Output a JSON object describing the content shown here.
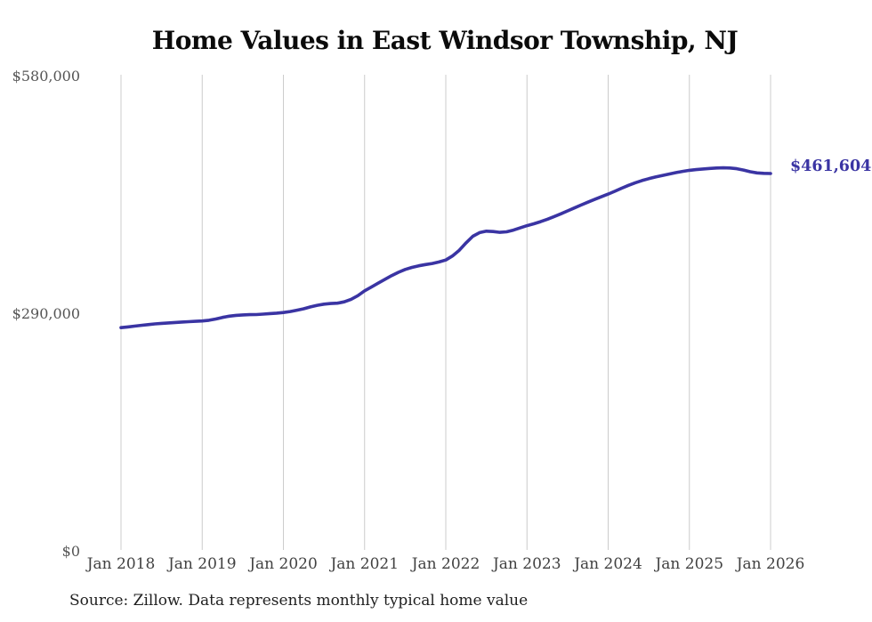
{
  "source_note": "Source: Zillow. Data represents monthly typical home value",
  "colors": {
    "line": "#3a34a3",
    "grid": "#cccccc",
    "title_text": "#0b0b0b",
    "y_axis_text": "#555555",
    "x_axis_text": "#414141"
  },
  "chart_data": {
    "type": "line",
    "title": "Home Values in East Windsor Township, NJ",
    "xlabel": "",
    "ylabel": "",
    "ylim": [
      0,
      580000
    ],
    "grid": "vertical-only",
    "legend": "none",
    "x_start": "Jan 2018",
    "x_interval": "monthly",
    "x_ticks": [
      "Jan 2018",
      "Jan 2019",
      "Jan 2020",
      "Jan 2021",
      "Jan 2022",
      "Jan 2023",
      "Jan 2024",
      "Jan 2025",
      "Jan 2026"
    ],
    "y_ticks": [
      {
        "label": "$0",
        "value": 0
      },
      {
        "label": "$290,000",
        "value": 290000
      },
      {
        "label": "$580,000",
        "value": 580000
      }
    ],
    "latest": {
      "label": "$461,604",
      "value": 461604
    },
    "series": [
      {
        "name": "Typical home value",
        "values": [
          273500,
          274400,
          275300,
          276300,
          277200,
          278000,
          278700,
          279300,
          279800,
          280300,
          280800,
          281200,
          281600,
          282500,
          284000,
          286000,
          287500,
          288500,
          289000,
          289300,
          289500,
          290000,
          290600,
          291200,
          292000,
          293200,
          294800,
          296500,
          298800,
          300800,
          302200,
          302900,
          303400,
          305000,
          308000,
          312500,
          318500,
          323000,
          327800,
          332500,
          337000,
          341000,
          344500,
          347000,
          349000,
          350500,
          351800,
          353700,
          356000,
          361000,
          368000,
          377000,
          385000,
          389500,
          391200,
          390800,
          389800,
          390500,
          392500,
          395200,
          398000,
          400200,
          402800,
          405800,
          409000,
          412400,
          416000,
          419600,
          423200,
          426600,
          430000,
          433300,
          436500,
          440000,
          443700,
          447200,
          450300,
          453000,
          455300,
          457400,
          459200,
          461000,
          462700,
          464200,
          465500,
          466400,
          467200,
          467800,
          468300,
          468600,
          468300,
          467500,
          465800,
          463800,
          462400,
          461800,
          461604
        ]
      }
    ]
  }
}
